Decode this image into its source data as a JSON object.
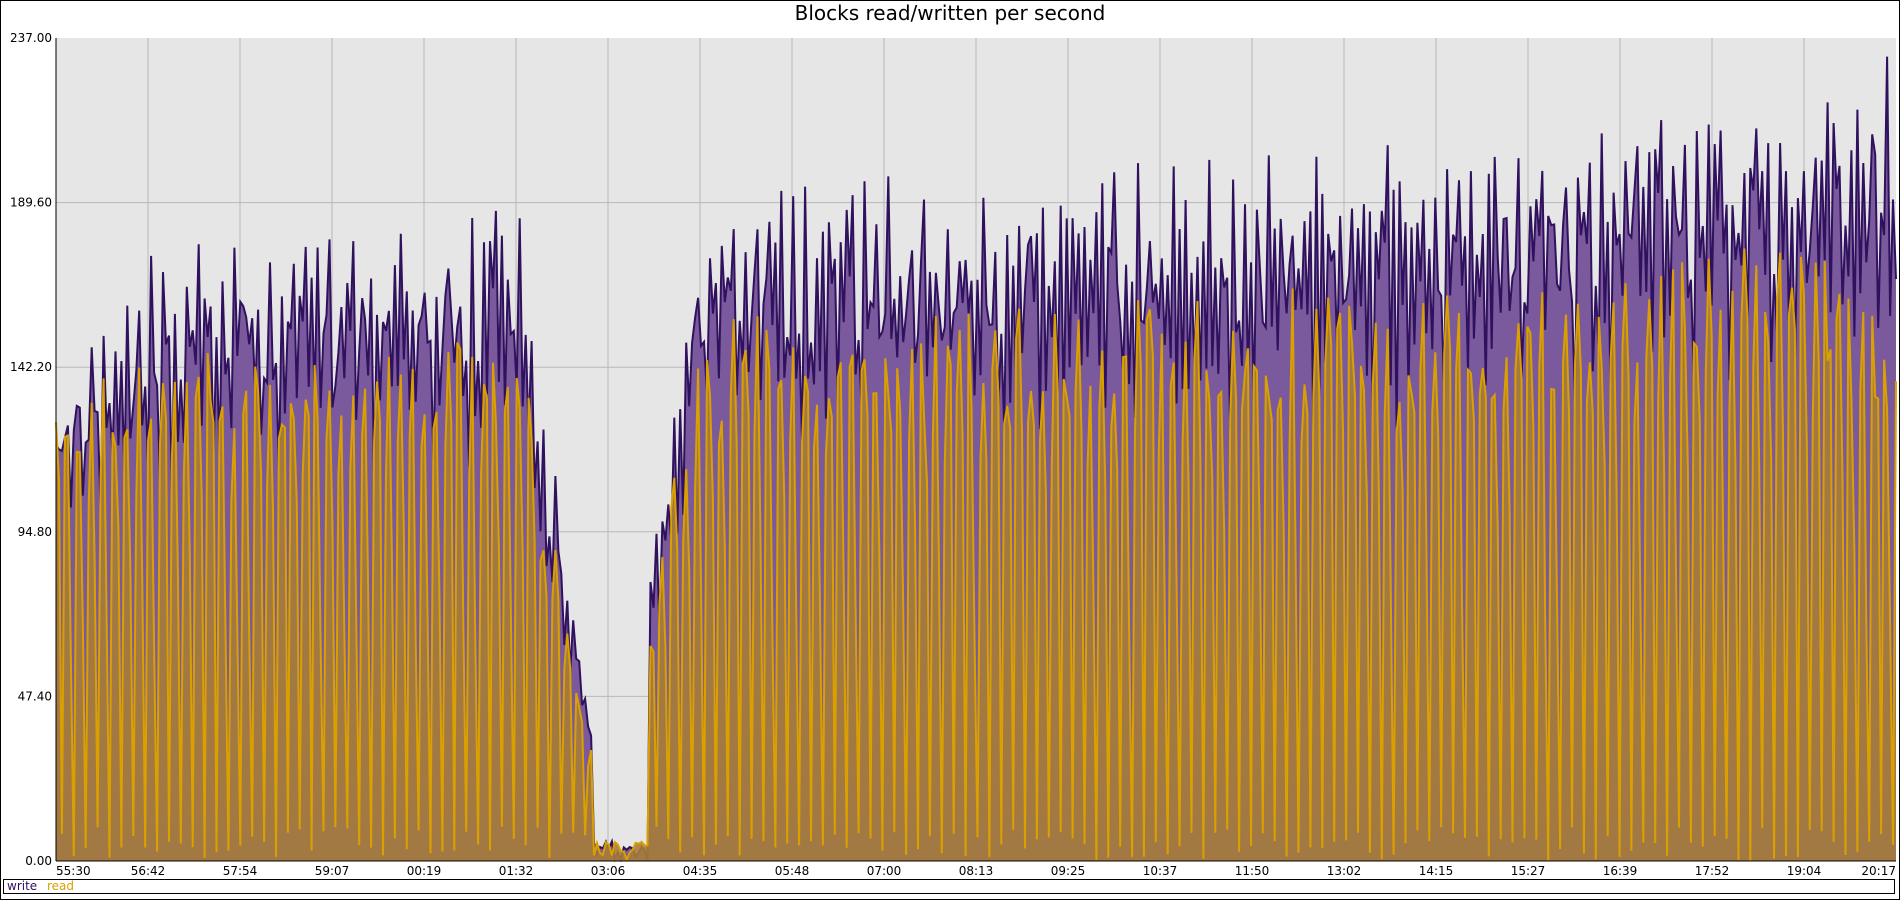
{
  "chart_data": {
    "type": "area",
    "title": "Blocks read/written per second",
    "xlabel": "",
    "ylabel": "",
    "ylim": [
      0,
      237.0
    ],
    "y_ticks": [
      "0.00",
      "47.40",
      "94.80",
      "142.20",
      "189.60",
      "237.00"
    ],
    "x_ticks": [
      "55:30",
      "56:42",
      "57:54",
      "59:07",
      "00:19",
      "01:32",
      "03:06",
      "04:35",
      "05:48",
      "07:00",
      "08:13",
      "09:25",
      "10:37",
      "11:50",
      "13:02",
      "14:15",
      "15:27",
      "16:39",
      "17:52",
      "19:04",
      "20:17"
    ],
    "grid": true,
    "legend_position": "bottom-left",
    "series": [
      {
        "name": "write",
        "color": "#30115e",
        "fill": "#7a5a9c",
        "envelope": [
          {
            "x": "55:30",
            "y": 140
          },
          {
            "x": "56:42",
            "y": 175
          },
          {
            "x": "57:54",
            "y": 180
          },
          {
            "x": "59:07",
            "y": 180
          },
          {
            "x": "00:19",
            "y": 182
          },
          {
            "x": "01:32",
            "y": 193
          },
          {
            "x": "03:06",
            "y": 4
          },
          {
            "x": "04:35",
            "y": 190
          },
          {
            "x": "05:48",
            "y": 197
          },
          {
            "x": "07:00",
            "y": 198
          },
          {
            "x": "08:13",
            "y": 196
          },
          {
            "x": "09:25",
            "y": 200
          },
          {
            "x": "10:37",
            "y": 202
          },
          {
            "x": "11:50",
            "y": 204
          },
          {
            "x": "13:02",
            "y": 205
          },
          {
            "x": "14:15",
            "y": 210
          },
          {
            "x": "15:27",
            "y": 210
          },
          {
            "x": "16:39",
            "y": 216
          },
          {
            "x": "17:52",
            "y": 220
          },
          {
            "x": "19:04",
            "y": 220
          },
          {
            "x": "20:17",
            "y": 237
          }
        ]
      },
      {
        "name": "read",
        "color": "#daa000",
        "fill": "#a67c3a",
        "envelope": [
          {
            "x": "55:30",
            "y": 135
          },
          {
            "x": "56:42",
            "y": 145
          },
          {
            "x": "57:54",
            "y": 148
          },
          {
            "x": "59:07",
            "y": 148
          },
          {
            "x": "00:19",
            "y": 150
          },
          {
            "x": "01:32",
            "y": 155
          },
          {
            "x": "03:06",
            "y": 5
          },
          {
            "x": "04:35",
            "y": 157
          },
          {
            "x": "05:48",
            "y": 158
          },
          {
            "x": "07:00",
            "y": 158
          },
          {
            "x": "08:13",
            "y": 160
          },
          {
            "x": "09:25",
            "y": 160
          },
          {
            "x": "10:37",
            "y": 162
          },
          {
            "x": "11:50",
            "y": 165
          },
          {
            "x": "13:02",
            "y": 165
          },
          {
            "x": "14:15",
            "y": 165
          },
          {
            "x": "15:27",
            "y": 167
          },
          {
            "x": "16:39",
            "y": 172
          },
          {
            "x": "17:52",
            "y": 178
          },
          {
            "x": "19:04",
            "y": 180
          },
          {
            "x": "20:17",
            "y": 150
          }
        ]
      }
    ]
  }
}
